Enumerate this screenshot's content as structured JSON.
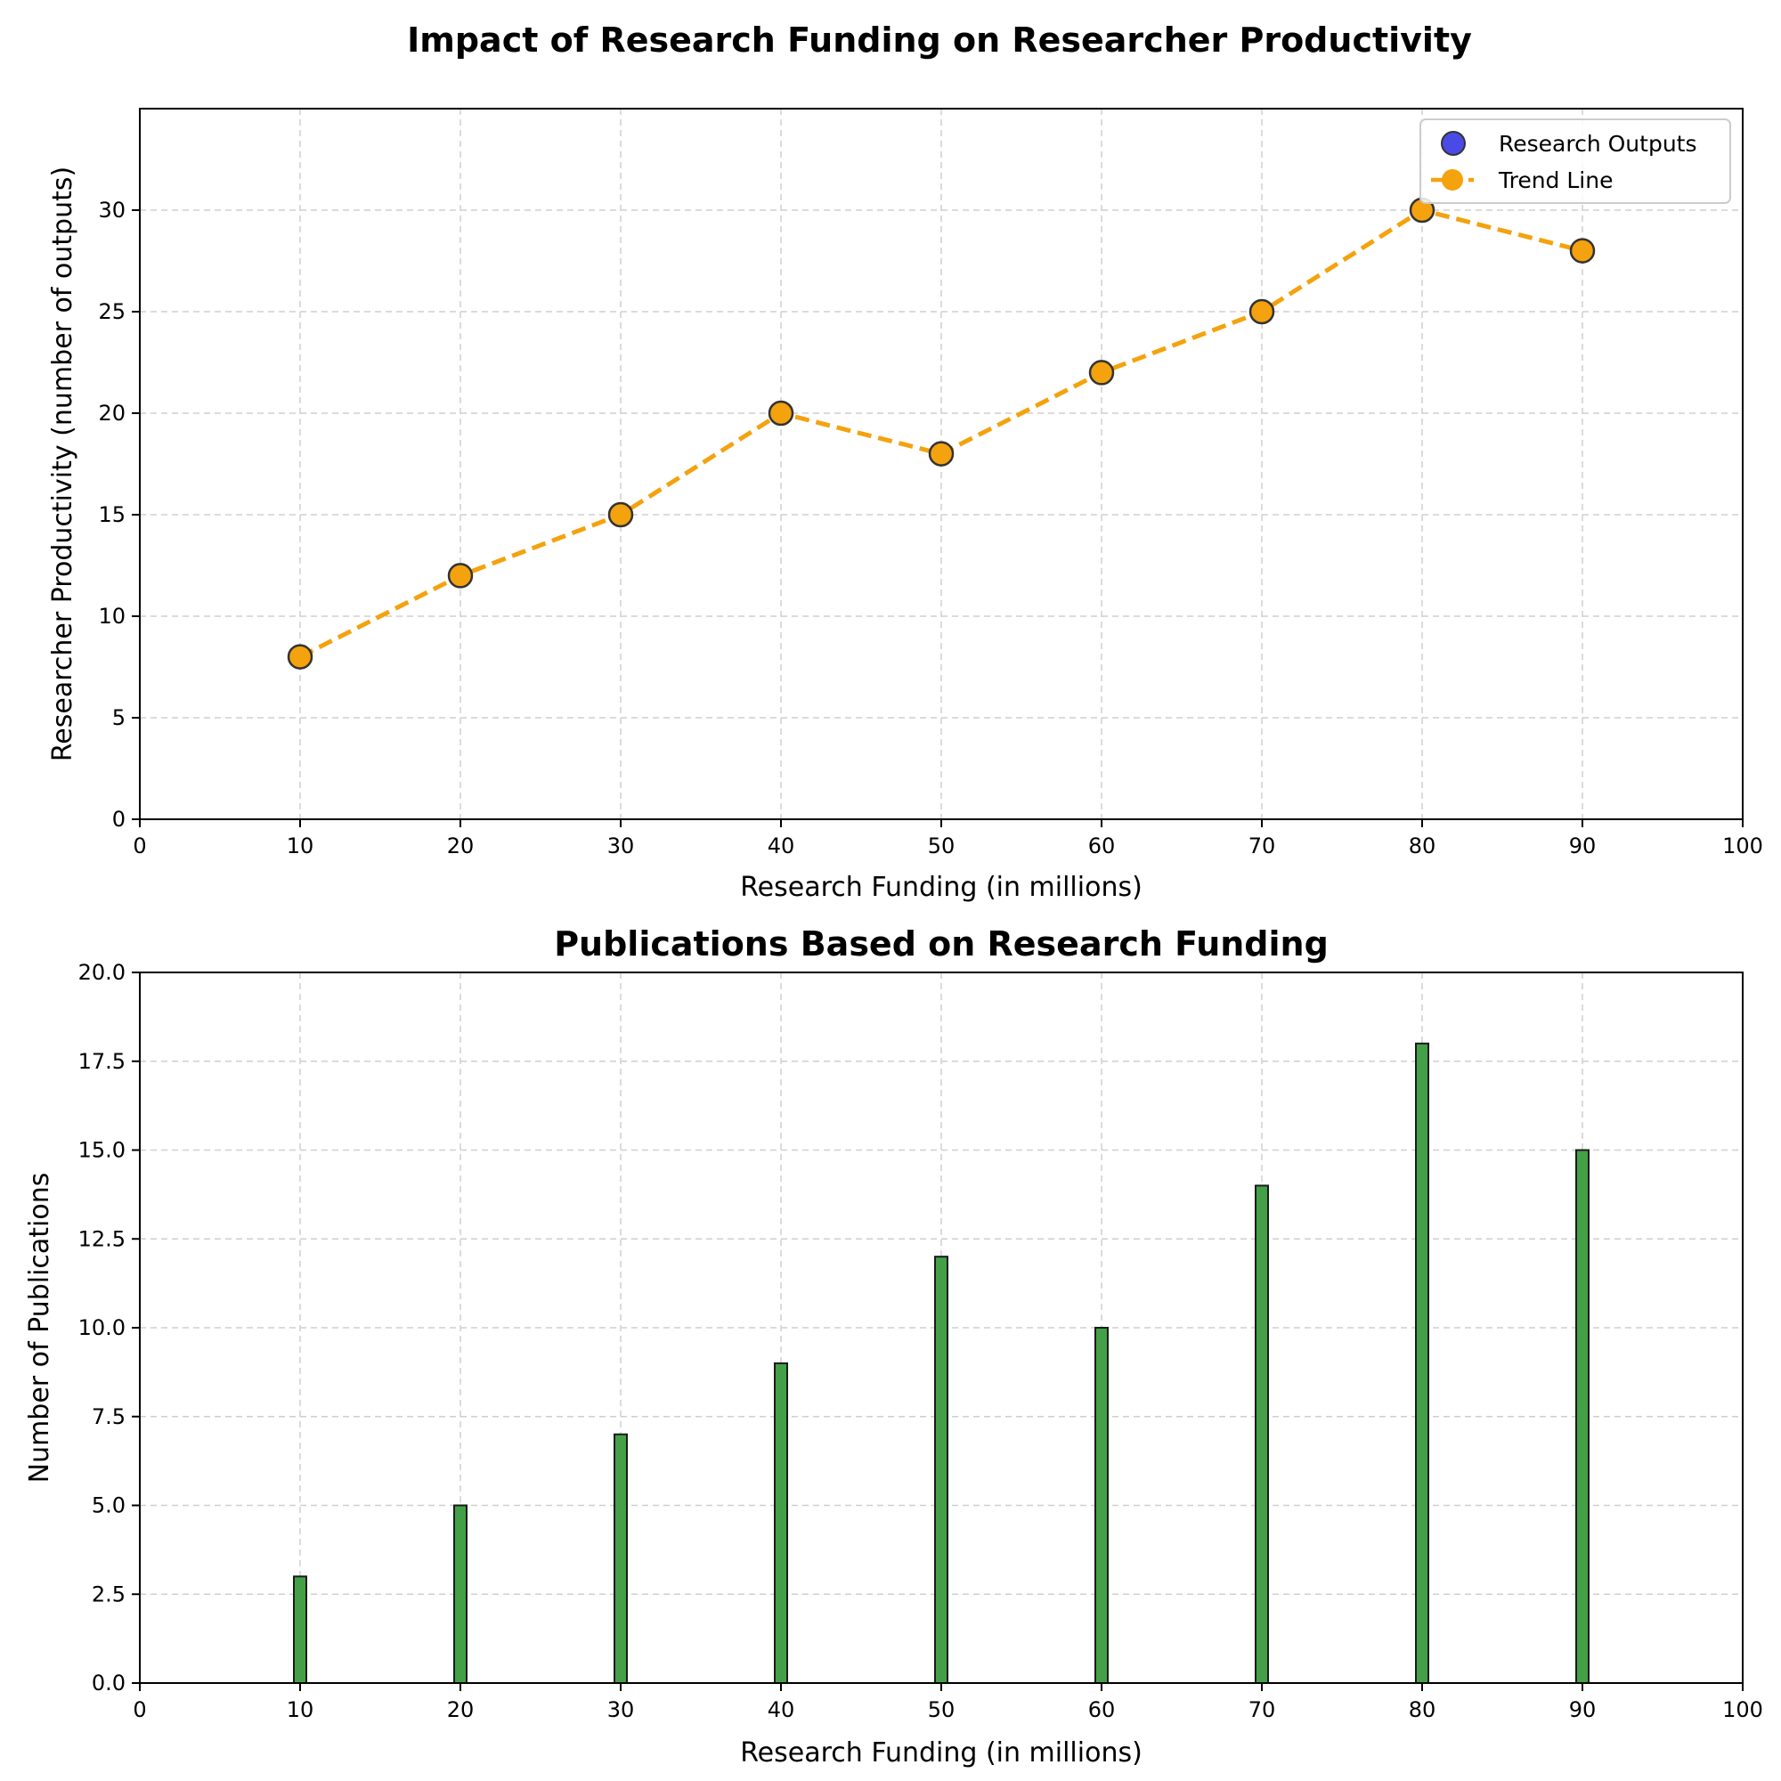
{
  "figure": {
    "suptitle": "Impact of Research Funding on Researcher Productivity"
  },
  "chart_data": [
    {
      "type": "scatter",
      "title": "",
      "xlabel": "Research Funding (in millions)",
      "ylabel": "Researcher Productivity (number of outputs)",
      "xlim": [
        0,
        100
      ],
      "ylim": [
        0,
        35
      ],
      "xticks": [
        0,
        10,
        20,
        30,
        40,
        50,
        60,
        70,
        80,
        90,
        100
      ],
      "yticks": [
        0,
        5,
        10,
        15,
        20,
        25,
        30
      ],
      "grid": true,
      "legend_position": "top-right",
      "x": [
        10,
        20,
        30,
        40,
        50,
        60,
        70,
        80,
        90
      ],
      "series": [
        {
          "name": "Research Outputs",
          "kind": "scatter",
          "color": "#4a4ae6",
          "values": [
            8,
            12,
            15,
            20,
            18,
            22,
            25,
            30,
            28
          ]
        },
        {
          "name": "Trend Line",
          "kind": "line",
          "style": "dashed",
          "color": "#f4a20d",
          "values": [
            8,
            12,
            15,
            20,
            18,
            22,
            25,
            30,
            28
          ]
        }
      ]
    },
    {
      "type": "bar",
      "title": "Publications Based on Research Funding",
      "xlabel": "Research Funding (in millions)",
      "ylabel": "Number of Publications",
      "xlim": [
        0,
        100
      ],
      "ylim": [
        0,
        20
      ],
      "xticks": [
        0,
        10,
        20,
        30,
        40,
        50,
        60,
        70,
        80,
        90,
        100
      ],
      "yticks": [
        "0.0",
        "2.5",
        "5.0",
        "7.5",
        "10.0",
        "12.5",
        "15.0",
        "17.5",
        "20.0"
      ],
      "grid": true,
      "bar_color": "#43a047",
      "categories": [
        10,
        20,
        30,
        40,
        50,
        60,
        70,
        80,
        90
      ],
      "values": [
        3,
        5,
        7,
        9,
        12,
        10,
        14,
        18,
        15
      ]
    }
  ]
}
